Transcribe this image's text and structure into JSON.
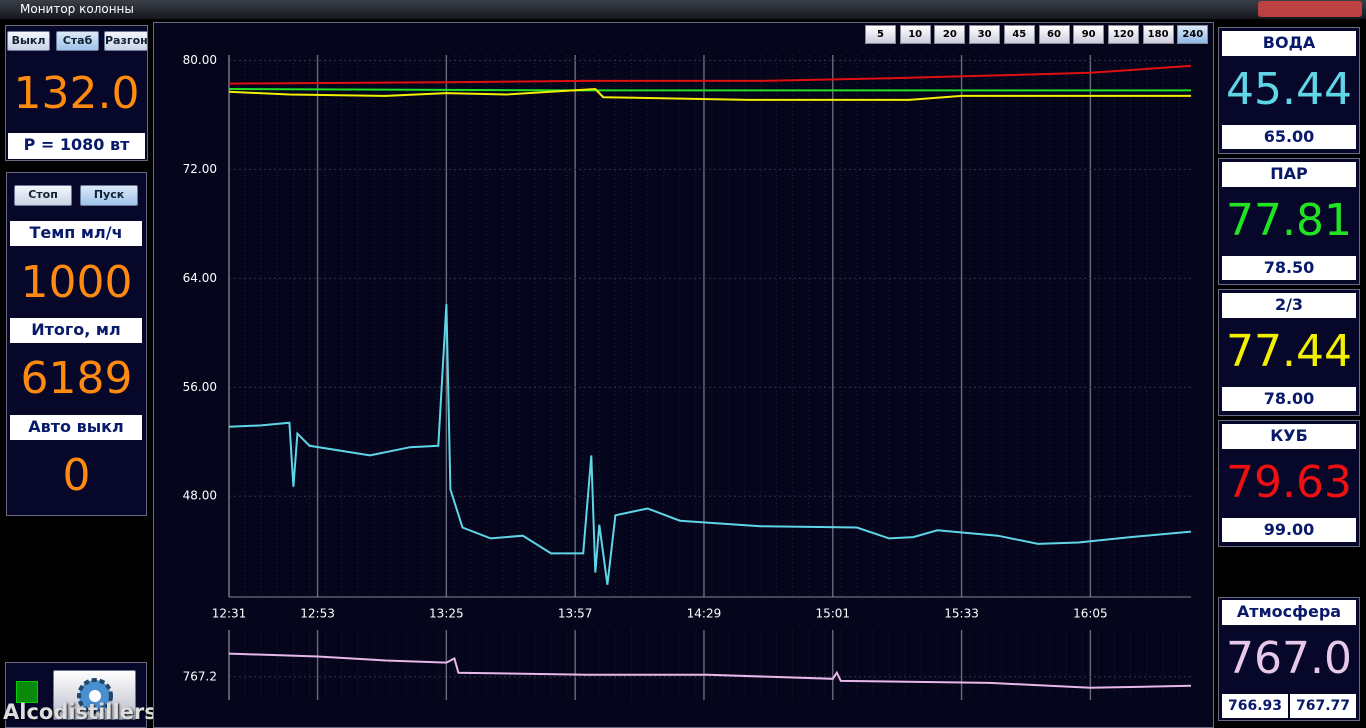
{
  "window": {
    "title": "Монитор колонны"
  },
  "left": {
    "modes": [
      "Выкл",
      "Стаб",
      "Разгон"
    ],
    "temperature": "132.0",
    "power": "P = 1080 вт",
    "pump_buttons": [
      "Стоп",
      "Пуск"
    ],
    "rate_label": "Темп мл/ч",
    "rate": "1000",
    "total_label": "Итого, мл",
    "total": "6189",
    "auto_label": "Авто выкл",
    "auto": "0"
  },
  "range_buttons": [
    "5",
    "10",
    "20",
    "30",
    "45",
    "60",
    "90",
    "120",
    "180",
    "240"
  ],
  "sensors": [
    {
      "label": "ВОДА",
      "value": "45.44",
      "setpoint": "65.00",
      "color": "#5fd6e6"
    },
    {
      "label": "ПАР",
      "value": "77.81",
      "setpoint": "78.50",
      "color": "#22e322"
    },
    {
      "label": "2/3",
      "value": "77.44",
      "setpoint": "78.00",
      "color": "#f0f000"
    },
    {
      "label": "КУБ",
      "value": "79.63",
      "setpoint": "99.00",
      "color": "#ee1010"
    }
  ],
  "atmosphere": {
    "label": "Атмосфера",
    "value": "767.0",
    "min": "766.93",
    "max": "767.77",
    "color": "#e8c8e8"
  },
  "watermark": "Alcodistillers.ru",
  "chart_data": [
    {
      "type": "line",
      "xlim": [
        "12:31",
        "16:30"
      ],
      "xticks": [
        "12:31",
        "12:53",
        "13:25",
        "13:57",
        "14:29",
        "15:01",
        "15:33",
        "16:05"
      ],
      "ylim": [
        40.6,
        80.4
      ],
      "yticks": [
        {
          "value": 80,
          "label": "80.00"
        },
        {
          "value": 72,
          "label": "72.00"
        },
        {
          "value": 64,
          "label": "64.00"
        },
        {
          "value": 56,
          "label": "56.00"
        },
        {
          "value": 48,
          "label": "48.00"
        }
      ],
      "grid": true,
      "series": [
        {
          "color": "#e01010",
          "x": [
            "12:31",
            "13:25",
            "14:00",
            "14:43",
            "15:15",
            "15:42",
            "16:05",
            "16:30"
          ],
          "values": [
            78.3,
            78.4,
            78.5,
            78.5,
            78.7,
            78.9,
            79.1,
            79.6
          ]
        },
        {
          "color": "#22e022",
          "x": [
            "12:31",
            "13:57",
            "16:30"
          ],
          "values": [
            77.9,
            77.8,
            77.8
          ]
        },
        {
          "color": "#f0f000",
          "x": [
            "12:31",
            "12:46",
            "13:10",
            "13:25",
            "13:40",
            "14:02",
            "14:04",
            "14:40",
            "15:20",
            "15:33",
            "16:30"
          ],
          "values": [
            77.7,
            77.5,
            77.4,
            77.6,
            77.5,
            77.9,
            77.3,
            77.1,
            77.1,
            77.4,
            77.4
          ]
        },
        {
          "color": "#5fd6e6",
          "x": [
            "12:31",
            "12:39",
            "12:46",
            "12:47",
            "12:48",
            "12:51",
            "13:06",
            "13:16",
            "13:23",
            "13:25",
            "13:26",
            "13:29",
            "13:36",
            "13:44",
            "13:51",
            "13:59",
            "14:01",
            "14:02",
            "14:03",
            "14:05",
            "14:07",
            "14:15",
            "14:23",
            "14:43",
            "15:07",
            "15:15",
            "15:21",
            "15:27",
            "15:42",
            "15:52",
            "16:02",
            "16:15",
            "16:30"
          ],
          "values": [
            53.1,
            53.2,
            53.4,
            48.7,
            52.6,
            51.7,
            51.0,
            51.6,
            51.7,
            62.1,
            48.5,
            45.7,
            44.9,
            45.1,
            43.8,
            43.8,
            51.0,
            42.4,
            45.9,
            41.5,
            46.6,
            47.1,
            46.2,
            45.8,
            45.7,
            44.9,
            45.0,
            45.5,
            45.1,
            44.5,
            44.6,
            45.0,
            45.4
          ]
        }
      ]
    },
    {
      "type": "line",
      "xlim": [
        "12:31",
        "16:30"
      ],
      "xticks": [
        "12:31",
        "12:53",
        "13:25",
        "13:57",
        "14:29",
        "15:01",
        "15:33",
        "16:05"
      ],
      "ylim": [
        766.63,
        768.35
      ],
      "yticks": [
        767.2
      ],
      "grid": true,
      "series": [
        {
          "color": "#e8b8e8",
          "x": [
            "12:31",
            "12:53",
            "13:10",
            "13:25",
            "13:27",
            "13:28",
            "14:00",
            "14:30",
            "15:01",
            "15:02",
            "15:03",
            "15:40",
            "16:05",
            "16:30"
          ],
          "values": [
            767.77,
            767.7,
            767.6,
            767.55,
            767.65,
            767.3,
            767.25,
            767.25,
            767.15,
            767.3,
            767.1,
            767.05,
            766.93,
            766.98
          ]
        }
      ]
    }
  ]
}
